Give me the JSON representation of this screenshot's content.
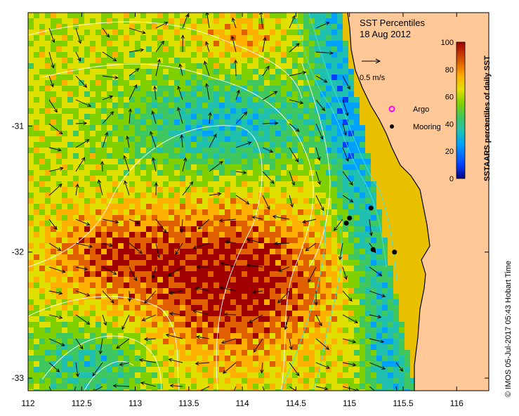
{
  "map": {
    "title": "SST Percentiles",
    "date": "18 Aug 2012",
    "scale_label": "0.5 m/s",
    "x_ticks": [
      "112",
      "112.5",
      "113",
      "113.5",
      "114",
      "114.5",
      "115",
      "115.5",
      "116"
    ],
    "y_ticks": [
      "-31",
      "-32",
      "-33"
    ],
    "x_tick_values": [
      112,
      112.5,
      113,
      113.5,
      114,
      114.5,
      115,
      115.5,
      116
    ],
    "y_tick_values": [
      -31,
      -32,
      -33
    ],
    "lon_range": [
      112,
      116.3
    ],
    "lat_range": [
      -33.1,
      -30.1
    ],
    "credit": "© IMOS 05-Jul-2017 05:43 Hobart Time"
  },
  "legend": {
    "argo_label": "Argo",
    "mooring_label": "Mooring",
    "argo_color": "#ff00ff",
    "mooring_color": "#000000"
  },
  "colorbar": {
    "label": "SSTAARS percentiles of daily SST",
    "ticks": [
      "100",
      "80",
      "60",
      "40",
      "20",
      "0"
    ],
    "colors": [
      "#000080",
      "#0040ff",
      "#00a0ff",
      "#20c0b0",
      "#40c860",
      "#80d000",
      "#e0e000",
      "#ffb000",
      "#e06000",
      "#a00000"
    ]
  },
  "moorings": [
    {
      "lon": 115.0,
      "lat": -31.73
    },
    {
      "lon": 114.97,
      "lat": -31.77
    },
    {
      "lon": 115.2,
      "lat": -31.65
    },
    {
      "lon": 115.22,
      "lat": -31.98
    },
    {
      "lon": 115.42,
      "lat": -32.0
    }
  ],
  "land_color": "#ffc896"
}
